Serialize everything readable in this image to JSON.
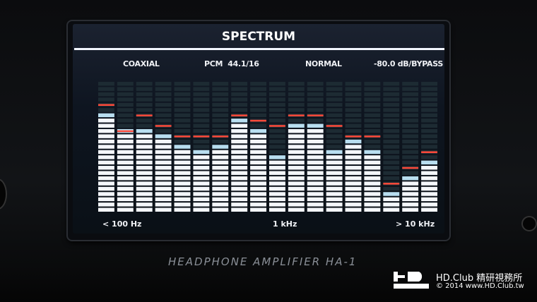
{
  "screen": {
    "title": "SPECTRUM",
    "input": "COAXIAL",
    "format": "PCM  44.1/16",
    "mode": "NORMAL",
    "volume": "-80.0 dB/BYPASS",
    "axis_labels": {
      "low": "< 100 Hz",
      "mid": "1 kHz",
      "high": "> 10 kHz"
    }
  },
  "spectrum": {
    "segments_per_band": 25,
    "levels": [
      19,
      16,
      16,
      15,
      13,
      12,
      13,
      18,
      16,
      11,
      17,
      17,
      12,
      14,
      12,
      4,
      7,
      10
    ],
    "peaks": [
      21,
      16,
      19,
      17,
      15,
      15,
      15,
      19,
      18,
      17,
      19,
      19,
      17,
      15,
      15,
      6,
      9,
      12
    ],
    "colors": {
      "bar": "#f4f7fb",
      "cap": "#b8def0",
      "peak": "#ff4a3a",
      "unlit": "#1d2b33"
    }
  },
  "device": {
    "model": "HEADPHONE AMPLIFIER HA-1"
  },
  "watermark": {
    "logo": "HD CLUB",
    "line1": "HD.Club 精研視務所",
    "line2": "© 2014  www.HD.Club.tw"
  }
}
